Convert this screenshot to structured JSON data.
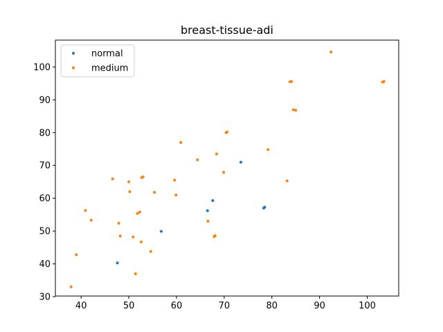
{
  "chart_data": {
    "type": "scatter",
    "title": "breast-tissue-adi",
    "xlabel": "",
    "ylabel": "",
    "xlim": [
      34.6,
      106.6
    ],
    "ylim": [
      30.2,
      108.2
    ],
    "xticks": [
      40,
      50,
      60,
      70,
      80,
      90,
      100
    ],
    "yticks": [
      30,
      40,
      50,
      60,
      70,
      80,
      90,
      100
    ],
    "grid": false,
    "legend_position": "top-left",
    "series": [
      {
        "name": "normal",
        "color": "#1f77b4",
        "points": [
          [
            47.6,
            40.3
          ],
          [
            56.8,
            49.9
          ],
          [
            66.5,
            56.2
          ],
          [
            67.6,
            59.3
          ],
          [
            73.5,
            71.0
          ],
          [
            78.3,
            57.0
          ],
          [
            78.5,
            57.3
          ]
        ]
      },
      {
        "name": "medium",
        "color": "#ff7f0e",
        "points": [
          [
            37.9,
            33.0
          ],
          [
            39.0,
            42.8
          ],
          [
            40.9,
            56.3
          ],
          [
            42.1,
            53.3
          ],
          [
            46.6,
            65.9
          ],
          [
            47.9,
            52.4
          ],
          [
            48.2,
            48.5
          ],
          [
            50.0,
            65.0
          ],
          [
            50.2,
            62.0
          ],
          [
            50.9,
            48.2
          ],
          [
            51.4,
            37.0
          ],
          [
            51.8,
            55.4
          ],
          [
            52.3,
            55.8
          ],
          [
            52.6,
            46.7
          ],
          [
            52.7,
            66.3
          ],
          [
            53.0,
            66.5
          ],
          [
            54.6,
            43.8
          ],
          [
            55.4,
            61.8
          ],
          [
            59.6,
            65.5
          ],
          [
            59.9,
            61.0
          ],
          [
            60.9,
            77.0
          ],
          [
            64.4,
            71.7
          ],
          [
            66.6,
            53.0
          ],
          [
            67.9,
            48.3
          ],
          [
            68.1,
            48.6
          ],
          [
            68.4,
            73.5
          ],
          [
            69.9,
            67.9
          ],
          [
            70.4,
            80.0
          ],
          [
            70.6,
            80.2
          ],
          [
            79.2,
            74.8
          ],
          [
            83.2,
            65.3
          ],
          [
            83.8,
            95.5
          ],
          [
            84.1,
            95.6
          ],
          [
            84.5,
            87.0
          ],
          [
            85.0,
            86.8
          ],
          [
            92.4,
            104.6
          ],
          [
            103.2,
            95.4
          ],
          [
            103.5,
            95.6
          ]
        ]
      }
    ]
  }
}
